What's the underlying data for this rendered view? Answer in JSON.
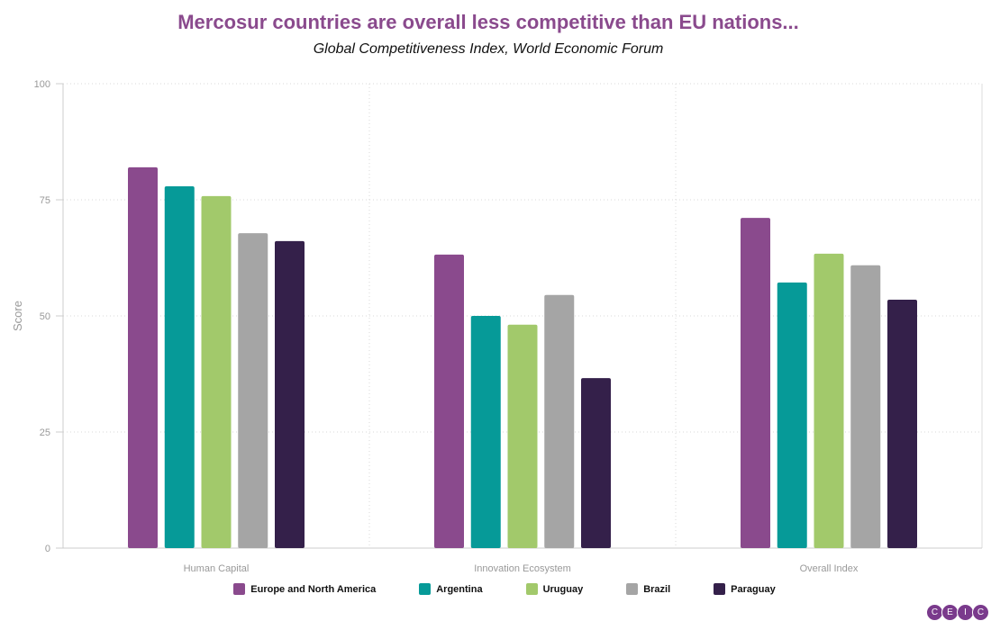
{
  "chart_data": {
    "type": "bar",
    "title": "Mercosur countries are overall less competitive than EU nations...",
    "subtitle": "Global Competitiveness Index, World Economic Forum",
    "xlabel": "",
    "ylabel": "Score",
    "ylim": [
      0,
      100
    ],
    "yticks": [
      "0",
      "25",
      "50",
      "75",
      "100"
    ],
    "categories": [
      "Human Capital",
      "Innovation Ecosystem",
      "Overall Index"
    ],
    "grid": true,
    "legend_position": "bottom",
    "series": [
      {
        "name": "Europe and North America",
        "color": "#8a4a8d",
        "values": [
          82.0,
          63.2,
          71.1
        ]
      },
      {
        "name": "Argentina",
        "color": "#069a98",
        "values": [
          77.9,
          50.0,
          57.2
        ]
      },
      {
        "name": "Uruguay",
        "color": "#a2c96b",
        "values": [
          75.8,
          48.1,
          63.4
        ]
      },
      {
        "name": "Brazil",
        "color": "#a5a5a5",
        "values": [
          67.8,
          54.5,
          60.9
        ]
      },
      {
        "name": "Paraguay",
        "color": "#34204a",
        "values": [
          66.1,
          36.6,
          53.5
        ]
      }
    ]
  },
  "logo": {
    "letters": [
      "C",
      "E",
      "I",
      "C"
    ],
    "color": "#7a3a8c"
  }
}
